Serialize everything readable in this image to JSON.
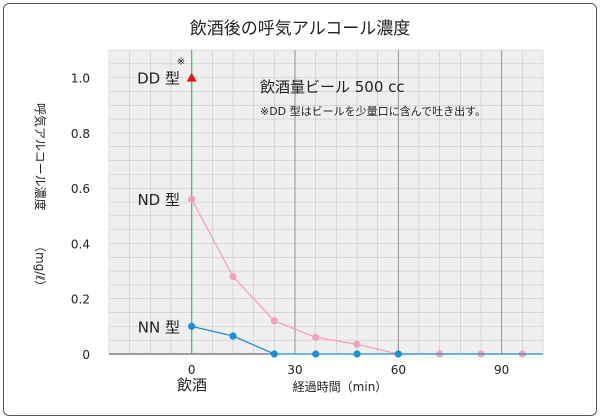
{
  "chart_data": {
    "type": "line",
    "title": "飲酒後の呼気アルコール濃度",
    "ylabel": "呼気アルコール濃度",
    "ylabel_unit": "（mg/ℓ）",
    "xlabel": "経過時間（min）",
    "x_origin_label": "飲酒",
    "xlim": [
      -24,
      102
    ],
    "ylim": [
      0,
      1.1
    ],
    "x_ticks": [
      0,
      30,
      60,
      90
    ],
    "x_tick_labels": [
      "0",
      "30",
      "60",
      "90"
    ],
    "y_ticks": [
      0,
      0.2,
      0.4,
      0.6,
      0.8,
      1.0
    ],
    "y_tick_labels": [
      "0",
      "0.2",
      "0.4",
      "0.6",
      "0.8",
      "1.0"
    ],
    "grid": true,
    "annotation_main": "飲酒量ビール 500 cc",
    "annotation_note": "※DD 型はビールを少量口に含んで吐き出す。",
    "series": [
      {
        "name": "DD 型",
        "note_mark": "※",
        "color": "#e8101a",
        "marker": "triangle",
        "points": [
          [
            0,
            1.0
          ]
        ]
      },
      {
        "name": "ND 型",
        "color": "#f4a0c0",
        "marker": "circle",
        "points": [
          [
            0,
            0.56
          ],
          [
            12,
            0.28
          ],
          [
            24,
            0.12
          ],
          [
            36,
            0.06
          ],
          [
            48,
            0.035
          ],
          [
            60,
            0.0
          ],
          [
            72,
            0.0
          ],
          [
            84,
            0.0
          ],
          [
            96,
            0.0
          ]
        ]
      },
      {
        "name": "NN 型",
        "color": "#1a90d8",
        "marker": "circle",
        "points": [
          [
            0,
            0.1
          ],
          [
            12,
            0.065
          ],
          [
            24,
            0.0
          ],
          [
            36,
            0.0
          ],
          [
            48,
            0.0
          ],
          [
            60,
            0.0
          ]
        ]
      }
    ],
    "zero_line_color": "#5cb85c"
  }
}
